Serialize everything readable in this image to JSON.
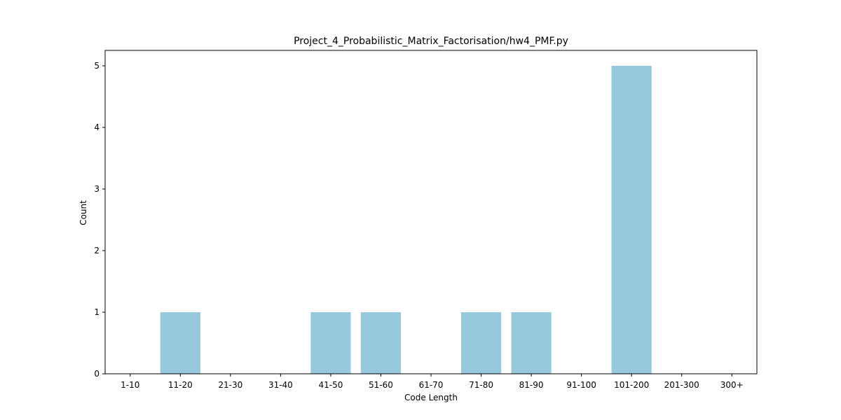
{
  "chart_data": {
    "type": "bar",
    "title": "Project_4_Probabilistic_Matrix_Factorisation/hw4_PMF.py",
    "xlabel": "Code Length",
    "ylabel": "Count",
    "categories": [
      "1-10",
      "11-20",
      "21-30",
      "31-40",
      "41-50",
      "51-60",
      "61-70",
      "71-80",
      "81-90",
      "91-100",
      "101-200",
      "201-300",
      "300+"
    ],
    "values": [
      0,
      1,
      0,
      0,
      1,
      1,
      0,
      1,
      1,
      0,
      5,
      0,
      0
    ],
    "ylim": [
      0,
      5.25
    ],
    "yticks": [
      0,
      1,
      2,
      3,
      4,
      5
    ],
    "grid": false,
    "colors": {
      "bar": "#96c9dd",
      "axis": "#000000",
      "background": "#ffffff"
    }
  }
}
